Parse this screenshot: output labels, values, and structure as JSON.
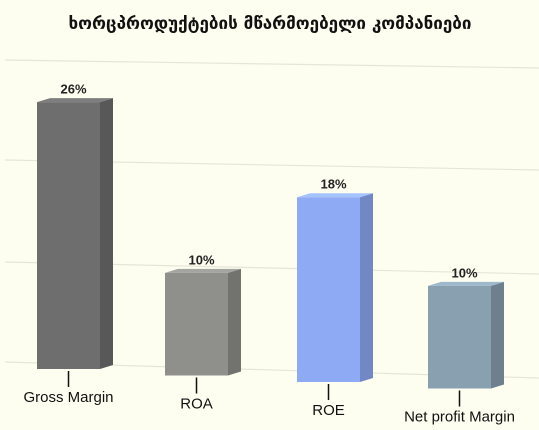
{
  "chart_data": {
    "type": "bar",
    "title": "ხორცპროდუქტების მწარმოებელი კომპანიები",
    "categories": [
      "Gross Margin",
      "ROA",
      "ROE",
      "Net profit Margin"
    ],
    "values": [
      26,
      10,
      18,
      10
    ],
    "value_labels": [
      "26%",
      "10%",
      "18%",
      "10%"
    ],
    "colors": [
      "#6e6e6e",
      "#8f8f8b",
      "#8faaf5",
      "#89a0b1"
    ],
    "ylim": [
      0,
      30
    ]
  }
}
